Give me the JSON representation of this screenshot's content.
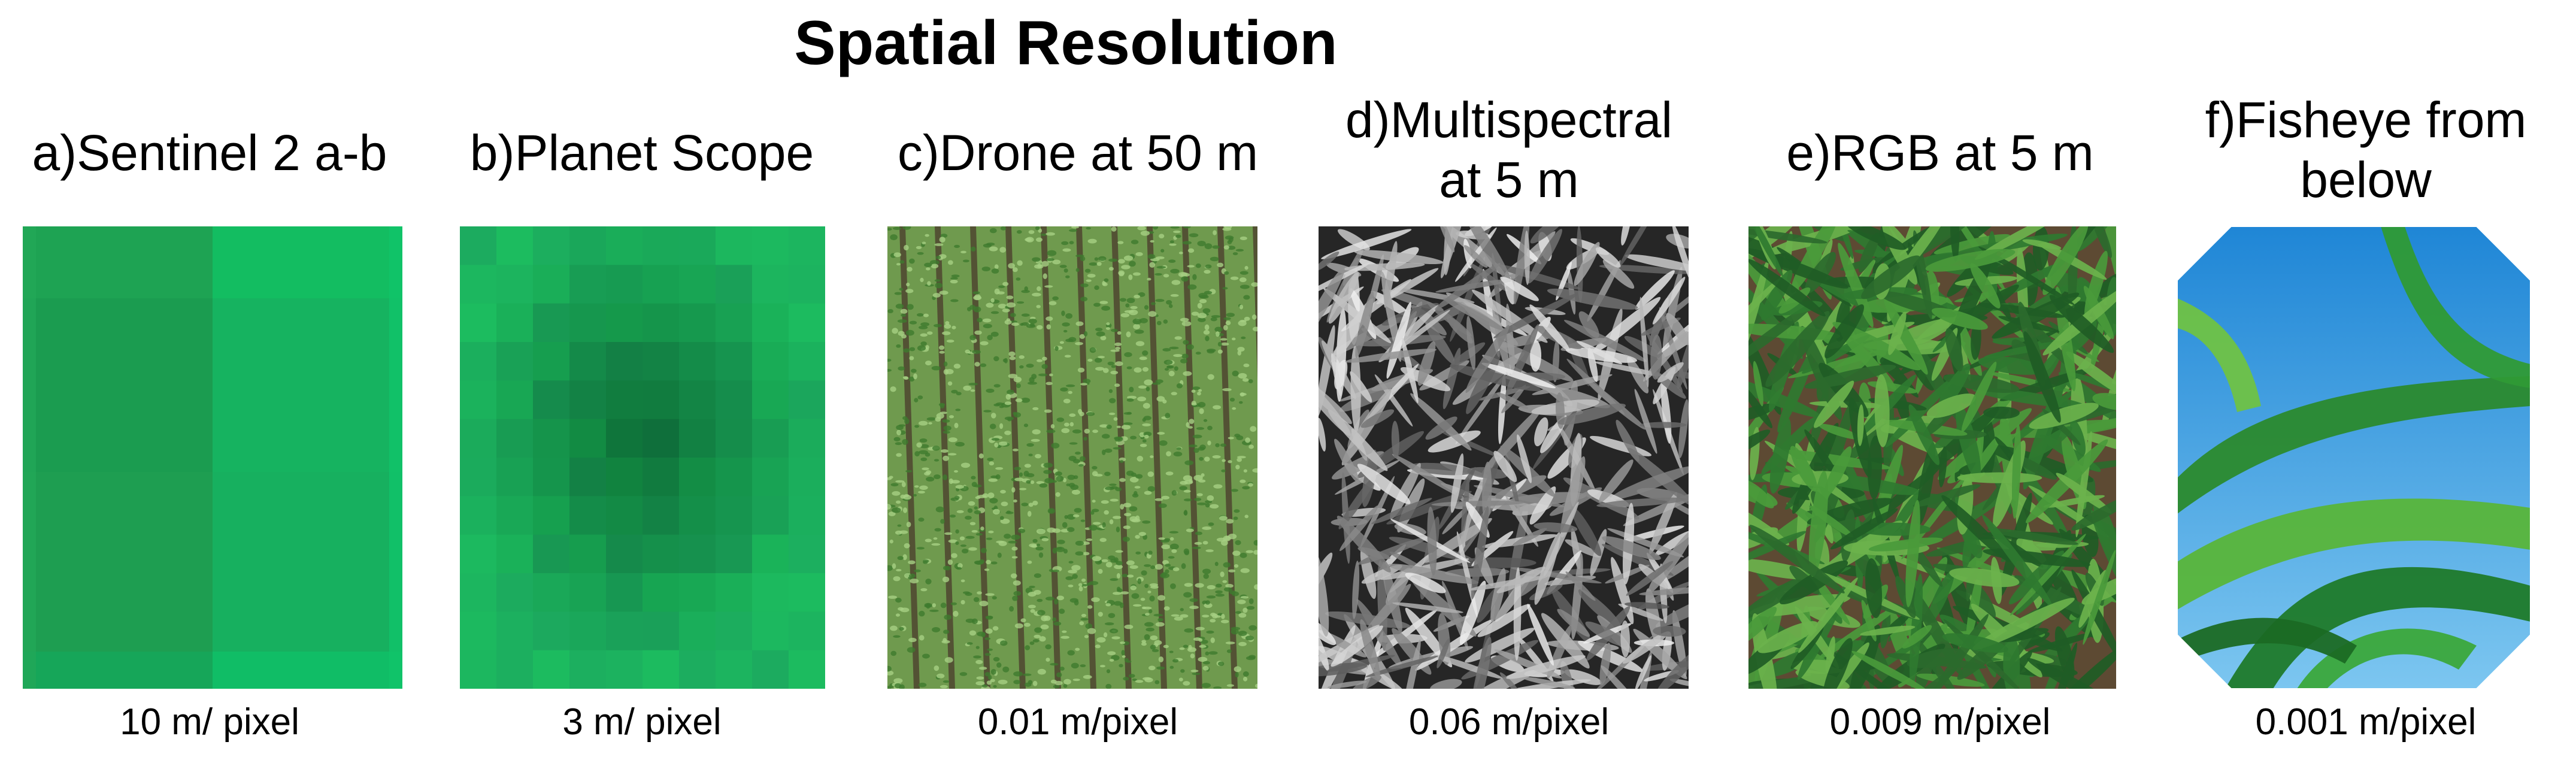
{
  "title": "Spatial Resolution",
  "panels": [
    {
      "label_lines": [
        "a)Sentinel 2 a-b"
      ],
      "resolution": "10 m/ pixel",
      "image_content": "green pixel grid, coarse",
      "colors": [
        "#1ea353",
        "#13bd61",
        "#21a254",
        "#16b360",
        "#1b9c50",
        "#0fc068"
      ]
    },
    {
      "label_lines": [
        "b)Planet Scope"
      ],
      "resolution": "3 m/ pixel",
      "image_content": "green pixel grid, fine",
      "colors": [
        "#137a3e",
        "#0f6d35",
        "#1d9a52",
        "#19a95b",
        "#138a45",
        "#0fb566"
      ]
    },
    {
      "label_lines": [
        "c)Drone at 50 m"
      ],
      "resolution": "0.01 m/pixel",
      "image_content": "aerial crop rows",
      "colors": [
        "#5b8c3d",
        "#9ec67a",
        "#4a3a2c"
      ]
    },
    {
      "label_lines": [
        "d)Multispectral",
        "at 5 m"
      ],
      "resolution": "0.06 m/pixel",
      "image_content": "grayscale leaf canopy",
      "colors": [
        "#1c1c1c",
        "#8a8a8a",
        "#d2d2d2"
      ]
    },
    {
      "label_lines": [
        "e)RGB at 5 m"
      ],
      "resolution": "0.009 m/pixel",
      "image_content": "green leaves on soil",
      "colors": [
        "#24622c",
        "#4a9a3b",
        "#6b5a3d"
      ]
    },
    {
      "label_lines": [
        "f)Fisheye from",
        "below"
      ],
      "resolution": "0.001 m/pixel",
      "image_content": "leaves against blue sky",
      "colors": [
        "#1f86d6",
        "#7cc6f0",
        "#1f7a2a",
        "#59b53a"
      ]
    }
  ]
}
